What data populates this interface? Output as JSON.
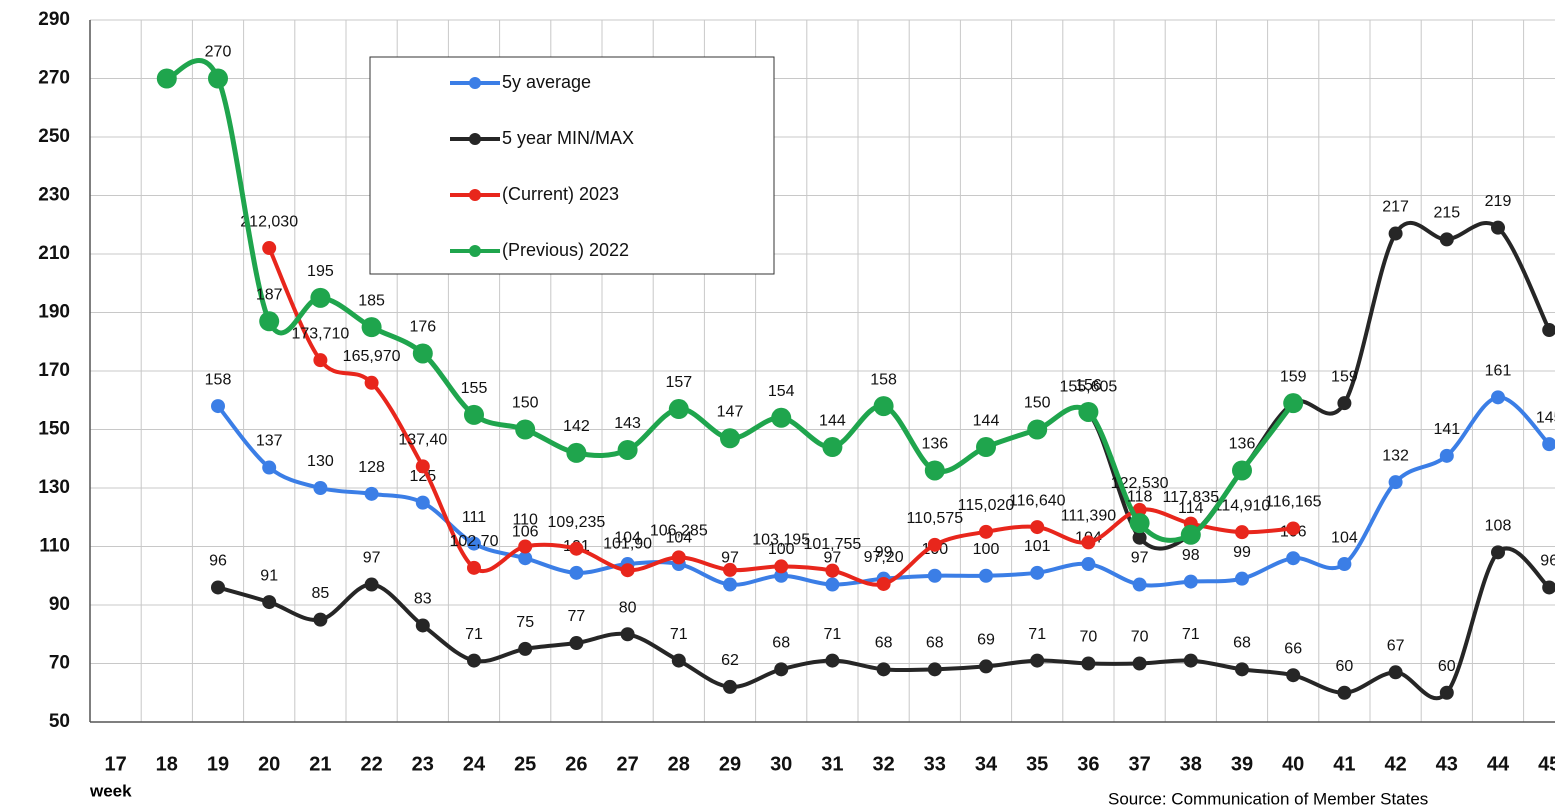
{
  "chart_data": {
    "type": "line",
    "x_label": "week",
    "source": "Source: Communication of Member States",
    "categories": [
      "17",
      "18",
      "19",
      "20",
      "21",
      "22",
      "23",
      "24",
      "25",
      "26",
      "27",
      "28",
      "29",
      "30",
      "31",
      "32",
      "33",
      "34",
      "35",
      "36",
      "37",
      "38",
      "39",
      "40",
      "41",
      "42",
      "43",
      "44",
      "45"
    ],
    "ylim": [
      50,
      290
    ],
    "yticks": [
      50,
      70,
      90,
      110,
      130,
      150,
      170,
      190,
      210,
      230,
      250,
      270,
      290
    ],
    "grid": true,
    "legend": "top-left",
    "series": [
      {
        "name": "5y average",
        "color": "#3b7ee6",
        "values": [
          null,
          null,
          158,
          137,
          130,
          128,
          125,
          111,
          106,
          101,
          104,
          104,
          97,
          100,
          97,
          99,
          100,
          100,
          101,
          104,
          97,
          98,
          99,
          106,
          104,
          132,
          141,
          161,
          145
        ]
      },
      {
        "name": "5 year MIN/MAX",
        "color": "#262626",
        "values": [
          null,
          null,
          96,
          91,
          85,
          97,
          83,
          71,
          75,
          77,
          80,
          71,
          62,
          68,
          71,
          68,
          68,
          69,
          71,
          70,
          70,
          71,
          68,
          66,
          60,
          67,
          60,
          108,
          96
        ],
        "max_values": [
          null,
          270,
          270,
          187,
          195,
          185,
          176,
          155,
          150,
          142,
          143,
          157,
          147,
          154,
          144,
          158,
          136,
          144,
          150,
          155.605,
          113,
          114,
          136,
          159,
          159,
          217,
          215,
          219,
          184
        ],
        "max_value_labels": [
          null,
          null,
          null,
          null,
          null,
          null,
          null,
          null,
          null,
          null,
          null,
          null,
          null,
          null,
          null,
          null,
          null,
          null,
          null,
          "155,605",
          null,
          null,
          null,
          null,
          "159",
          "217",
          "215",
          "219",
          null
        ]
      },
      {
        "name": " (Current) 2023",
        "color": "#e8261c",
        "values": [
          null,
          null,
          null,
          212.03,
          173.71,
          165.97,
          137.4,
          102.7,
          110,
          109.235,
          101.9,
          106.285,
          102,
          103.195,
          101.755,
          97.2,
          110.575,
          115.02,
          116.64,
          111.39,
          122.53,
          117.835,
          114.91,
          116.165,
          null,
          null,
          null,
          null,
          null
        ],
        "value_labels": [
          null,
          null,
          null,
          "212,030",
          "173,710",
          "165,970",
          "137,40",
          "102,70",
          "110",
          "109,235",
          "101,90",
          "106,285",
          null,
          "103,195",
          "101,755",
          "97,20",
          "110,575",
          "115,020",
          "116,640",
          "111,390",
          "122,530",
          "117,835",
          "114,910",
          "116,165",
          null,
          null,
          null,
          null,
          null
        ]
      },
      {
        "name": "(Previous) 2022",
        "color": "#1fa54d",
        "values": [
          null,
          270,
          270,
          187,
          195,
          185,
          176,
          155,
          150,
          142,
          143,
          157,
          147,
          154,
          144,
          158,
          136,
          144,
          150,
          156,
          118,
          114,
          136,
          159,
          null,
          null,
          null,
          null,
          null
        ],
        "value_labels": [
          null,
          null,
          "270",
          "187",
          "195",
          "185",
          "176",
          "155",
          "150",
          "142",
          "143",
          "157",
          "147",
          "154",
          "144",
          "158",
          "136",
          "144",
          "150",
          "156",
          "118",
          "114",
          "136",
          "159",
          null,
          null,
          null,
          null,
          null
        ]
      }
    ]
  }
}
